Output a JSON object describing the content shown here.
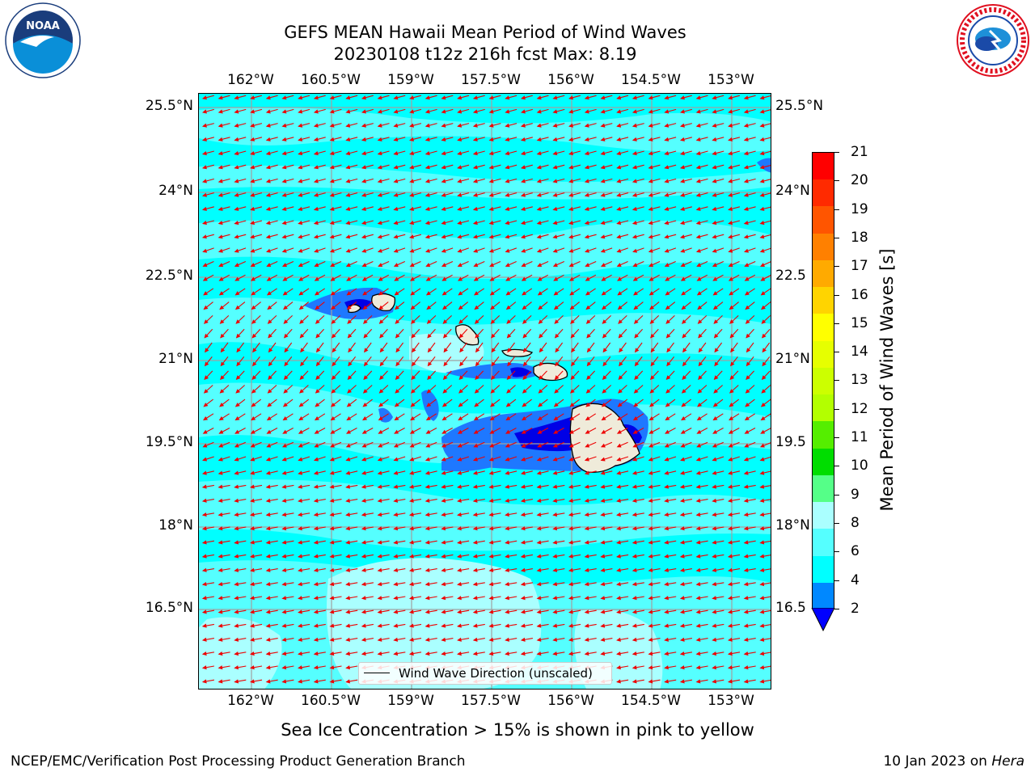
{
  "header": {
    "title_line1": "GEFS MEAN Hawaii Mean Period of Wind Waves",
    "title_line2": "20230108 t12z 216h fcst   Max: 8.19"
  },
  "logos": {
    "left": "NOAA",
    "right": "NATIONAL WEATHER SERVICE"
  },
  "axes": {
    "lon_ticks": [
      "162°W",
      "160.5°W",
      "159°W",
      "157.5°W",
      "156°W",
      "154.5°W",
      "153°W"
    ],
    "lat_ticks_left": [
      "25.5°N",
      "24°N",
      "22.5°N",
      "21°N",
      "19.5°N",
      "18°N",
      "16.5°N"
    ],
    "lat_ticks_right": [
      "25.5°N",
      "24°N",
      "22.5",
      "21°N",
      "19.5",
      "18°N",
      "16.5"
    ]
  },
  "colorbar": {
    "label": "Mean Period of Wind Waves [s]",
    "tick_labels": [
      "21",
      "20",
      "19",
      "18",
      "17",
      "16",
      "15",
      "14",
      "13",
      "12",
      "11",
      "10",
      "9",
      "8",
      "6",
      "4",
      "2"
    ],
    "colors": [
      "#ff0000",
      "#ff2a00",
      "#ff5500",
      "#ff8000",
      "#ffaa00",
      "#ffd400",
      "#ffff00",
      "#e6ff00",
      "#ccff00",
      "#b3ff00",
      "#55ee00",
      "#00dd00",
      "#55ff88",
      "#aaffff",
      "#55ffff",
      "#00ffff",
      "#0088ff"
    ],
    "under_color": "#0000ff"
  },
  "legend": {
    "label": "Wind Wave Direction (unscaled)"
  },
  "caption": "Sea Ice Concentration > 15% is shown in pink to yellow",
  "footer": {
    "left": "NCEP/EMC/Verification Post Processing Product Generation Branch",
    "right_date": "10 Jan 2023 on ",
    "right_host": "Hera"
  },
  "map_colors": {
    "ocean": "#00ffff",
    "light": "#55ffff",
    "pale": "#aaffff",
    "mid": "#1e78ff",
    "deep": "#0000e6",
    "land": "#efebda",
    "arrow": "#ee0000",
    "grid": "#a0a0a0"
  }
}
